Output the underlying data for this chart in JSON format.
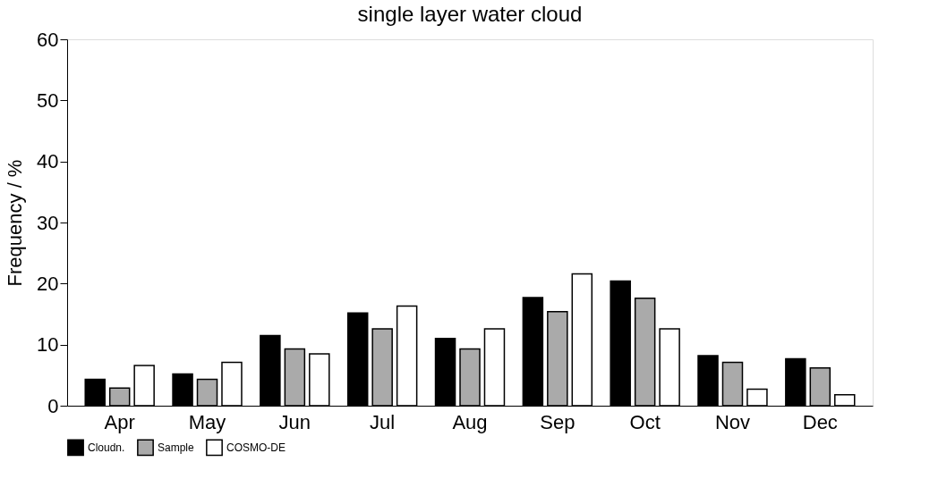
{
  "chart_data": {
    "type": "bar",
    "title": "single layer water cloud",
    "ylabel": "Frequency / %",
    "categories": [
      "Apr",
      "May",
      "Jun",
      "Jul",
      "Aug",
      "Sep",
      "Oct",
      "Nov",
      "Dec"
    ],
    "series": [
      {
        "name": "Cloudn.",
        "color": "#000000",
        "values": [
          4.3,
          5.2,
          11.5,
          15.2,
          11.0,
          17.7,
          20.4,
          8.2,
          7.7
        ]
      },
      {
        "name": "Sample",
        "color": "#aaaaaa",
        "values": [
          2.9,
          4.3,
          9.3,
          12.6,
          9.3,
          15.4,
          17.6,
          7.1,
          6.2
        ]
      },
      {
        "name": "COSMO-DE",
        "color": "#ffffff",
        "values": [
          6.6,
          7.1,
          8.5,
          16.3,
          12.6,
          21.6,
          12.6,
          2.7,
          1.8
        ]
      }
    ],
    "ylim": [
      0,
      60
    ],
    "yticks": [
      0,
      10,
      20,
      30,
      40,
      50,
      60
    ],
    "grid": false,
    "legend": "bottom left"
  }
}
